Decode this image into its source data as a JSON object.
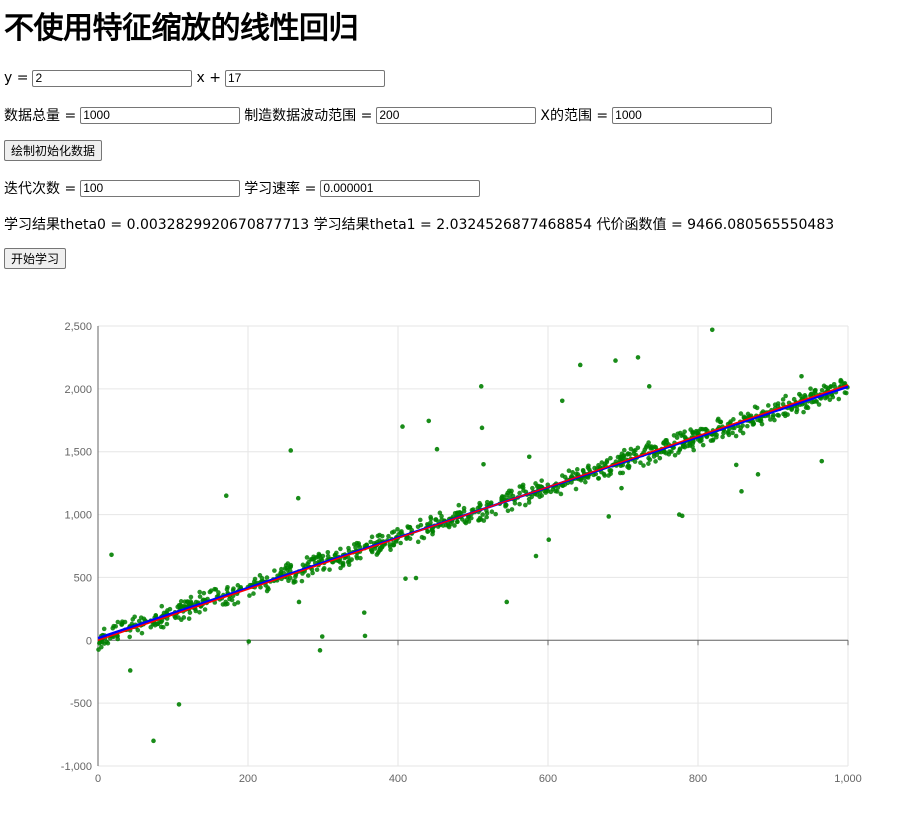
{
  "page": {
    "title": "不使用特征缩放的线性回归"
  },
  "equation": {
    "y_label": "y =",
    "slope": "2",
    "x_label": "x +",
    "intercept": "17"
  },
  "data_params": {
    "count_label": "数据总量 =",
    "count": "1000",
    "noise_label": "制造数据波动范围 =",
    "noise": "200",
    "xrange_label": "X的范围 =",
    "xrange": "1000"
  },
  "buttons": {
    "draw_initial": "绘制初始化数据",
    "start_learning": "开始学习"
  },
  "training": {
    "iterations_label": "迭代次数 =",
    "iterations": "100",
    "lr_label": "学习速率 =",
    "lr": "0.000001"
  },
  "results": {
    "text": "学习结果theta0 = 0.0032829920670877713 学习结果theta1 = 2.0324526877468854 代价函数值 = 9466.080565550483"
  },
  "colors": {
    "points": "#008000",
    "true_line": "#0000ff",
    "fit_line": "#ff0000",
    "grid": "#e6e6e6",
    "axis": "#666666"
  },
  "chart_data": {
    "type": "scatter",
    "xlim": [
      0,
      1000
    ],
    "ylim": [
      -1000,
      2500
    ],
    "x_ticks": [
      "0",
      "200",
      "400",
      "600",
      "800",
      "1,000"
    ],
    "y_ticks": [
      "-1,000",
      "-500",
      "0",
      "500",
      "1,000",
      "1,500",
      "2,000",
      "2,500"
    ],
    "grid": true,
    "lines": [
      {
        "role": "true-line",
        "slope": 2,
        "intercept": 17
      },
      {
        "role": "fitted-line",
        "slope": 2.0324526877468854,
        "intercept": 0.0032829920670877713
      }
    ],
    "band": {
      "count": 1000,
      "slope": 2,
      "intercept": 17,
      "spread": 100
    },
    "outliers": [
      [
        18,
        680
      ],
      [
        43,
        -240
      ],
      [
        74,
        -800
      ],
      [
        108,
        -510
      ],
      [
        171,
        1150
      ],
      [
        201,
        -10
      ],
      [
        257,
        1510
      ],
      [
        267,
        1130
      ],
      [
        268,
        305
      ],
      [
        296,
        -80
      ],
      [
        299,
        30
      ],
      [
        355,
        220
      ],
      [
        356,
        35
      ],
      [
        406,
        1700
      ],
      [
        410,
        490
      ],
      [
        424,
        495
      ],
      [
        441,
        1745
      ],
      [
        452,
        1520
      ],
      [
        511,
        2020
      ],
      [
        512,
        1690
      ],
      [
        514,
        1400
      ],
      [
        545,
        305
      ],
      [
        575,
        1460
      ],
      [
        584,
        670
      ],
      [
        601,
        800
      ],
      [
        619,
        1905
      ],
      [
        643,
        2190
      ],
      [
        681,
        985
      ],
      [
        690,
        2225
      ],
      [
        698,
        1210
      ],
      [
        720,
        2250
      ],
      [
        735,
        2020
      ],
      [
        775,
        1000
      ],
      [
        779,
        990
      ],
      [
        819,
        2470
      ],
      [
        851,
        1395
      ],
      [
        858,
        1185
      ],
      [
        880,
        1320
      ],
      [
        938,
        2100
      ],
      [
        965,
        1425
      ]
    ]
  }
}
